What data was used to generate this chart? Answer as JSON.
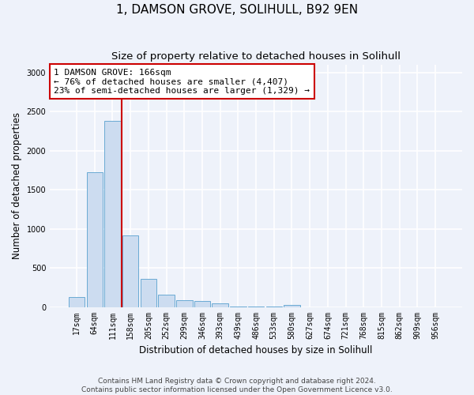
{
  "title1": "1, DAMSON GROVE, SOLIHULL, B92 9EN",
  "title2": "Size of property relative to detached houses in Solihull",
  "xlabel": "Distribution of detached houses by size in Solihull",
  "ylabel": "Number of detached properties",
  "categories": [
    "17sqm",
    "64sqm",
    "111sqm",
    "158sqm",
    "205sqm",
    "252sqm",
    "299sqm",
    "346sqm",
    "393sqm",
    "439sqm",
    "486sqm",
    "533sqm",
    "580sqm",
    "627sqm",
    "674sqm",
    "721sqm",
    "768sqm",
    "815sqm",
    "862sqm",
    "909sqm",
    "956sqm"
  ],
  "values": [
    130,
    1720,
    2380,
    920,
    355,
    160,
    90,
    75,
    45,
    5,
    5,
    5,
    25,
    0,
    0,
    0,
    0,
    0,
    0,
    0,
    0
  ],
  "bar_color": "#ccdcf0",
  "bar_edge_color": "#6aaad4",
  "highlight_line_index": 3,
  "highlight_color": "#cc0000",
  "annotation_title": "1 DAMSON GROVE: 166sqm",
  "annotation_line1": "← 76% of detached houses are smaller (4,407)",
  "annotation_line2": "23% of semi-detached houses are larger (1,329) →",
  "annotation_box_color": "#cc0000",
  "ylim": [
    0,
    3100
  ],
  "yticks": [
    0,
    500,
    1000,
    1500,
    2000,
    2500,
    3000
  ],
  "footer1": "Contains HM Land Registry data © Crown copyright and database right 2024.",
  "footer2": "Contains public sector information licensed under the Open Government Licence v3.0.",
  "background_color": "#eef2fa",
  "grid_color": "#ffffff",
  "title1_fontsize": 11,
  "title2_fontsize": 9.5,
  "axis_label_fontsize": 8.5,
  "tick_fontsize": 7,
  "annotation_fontsize": 8,
  "footer_fontsize": 6.5
}
